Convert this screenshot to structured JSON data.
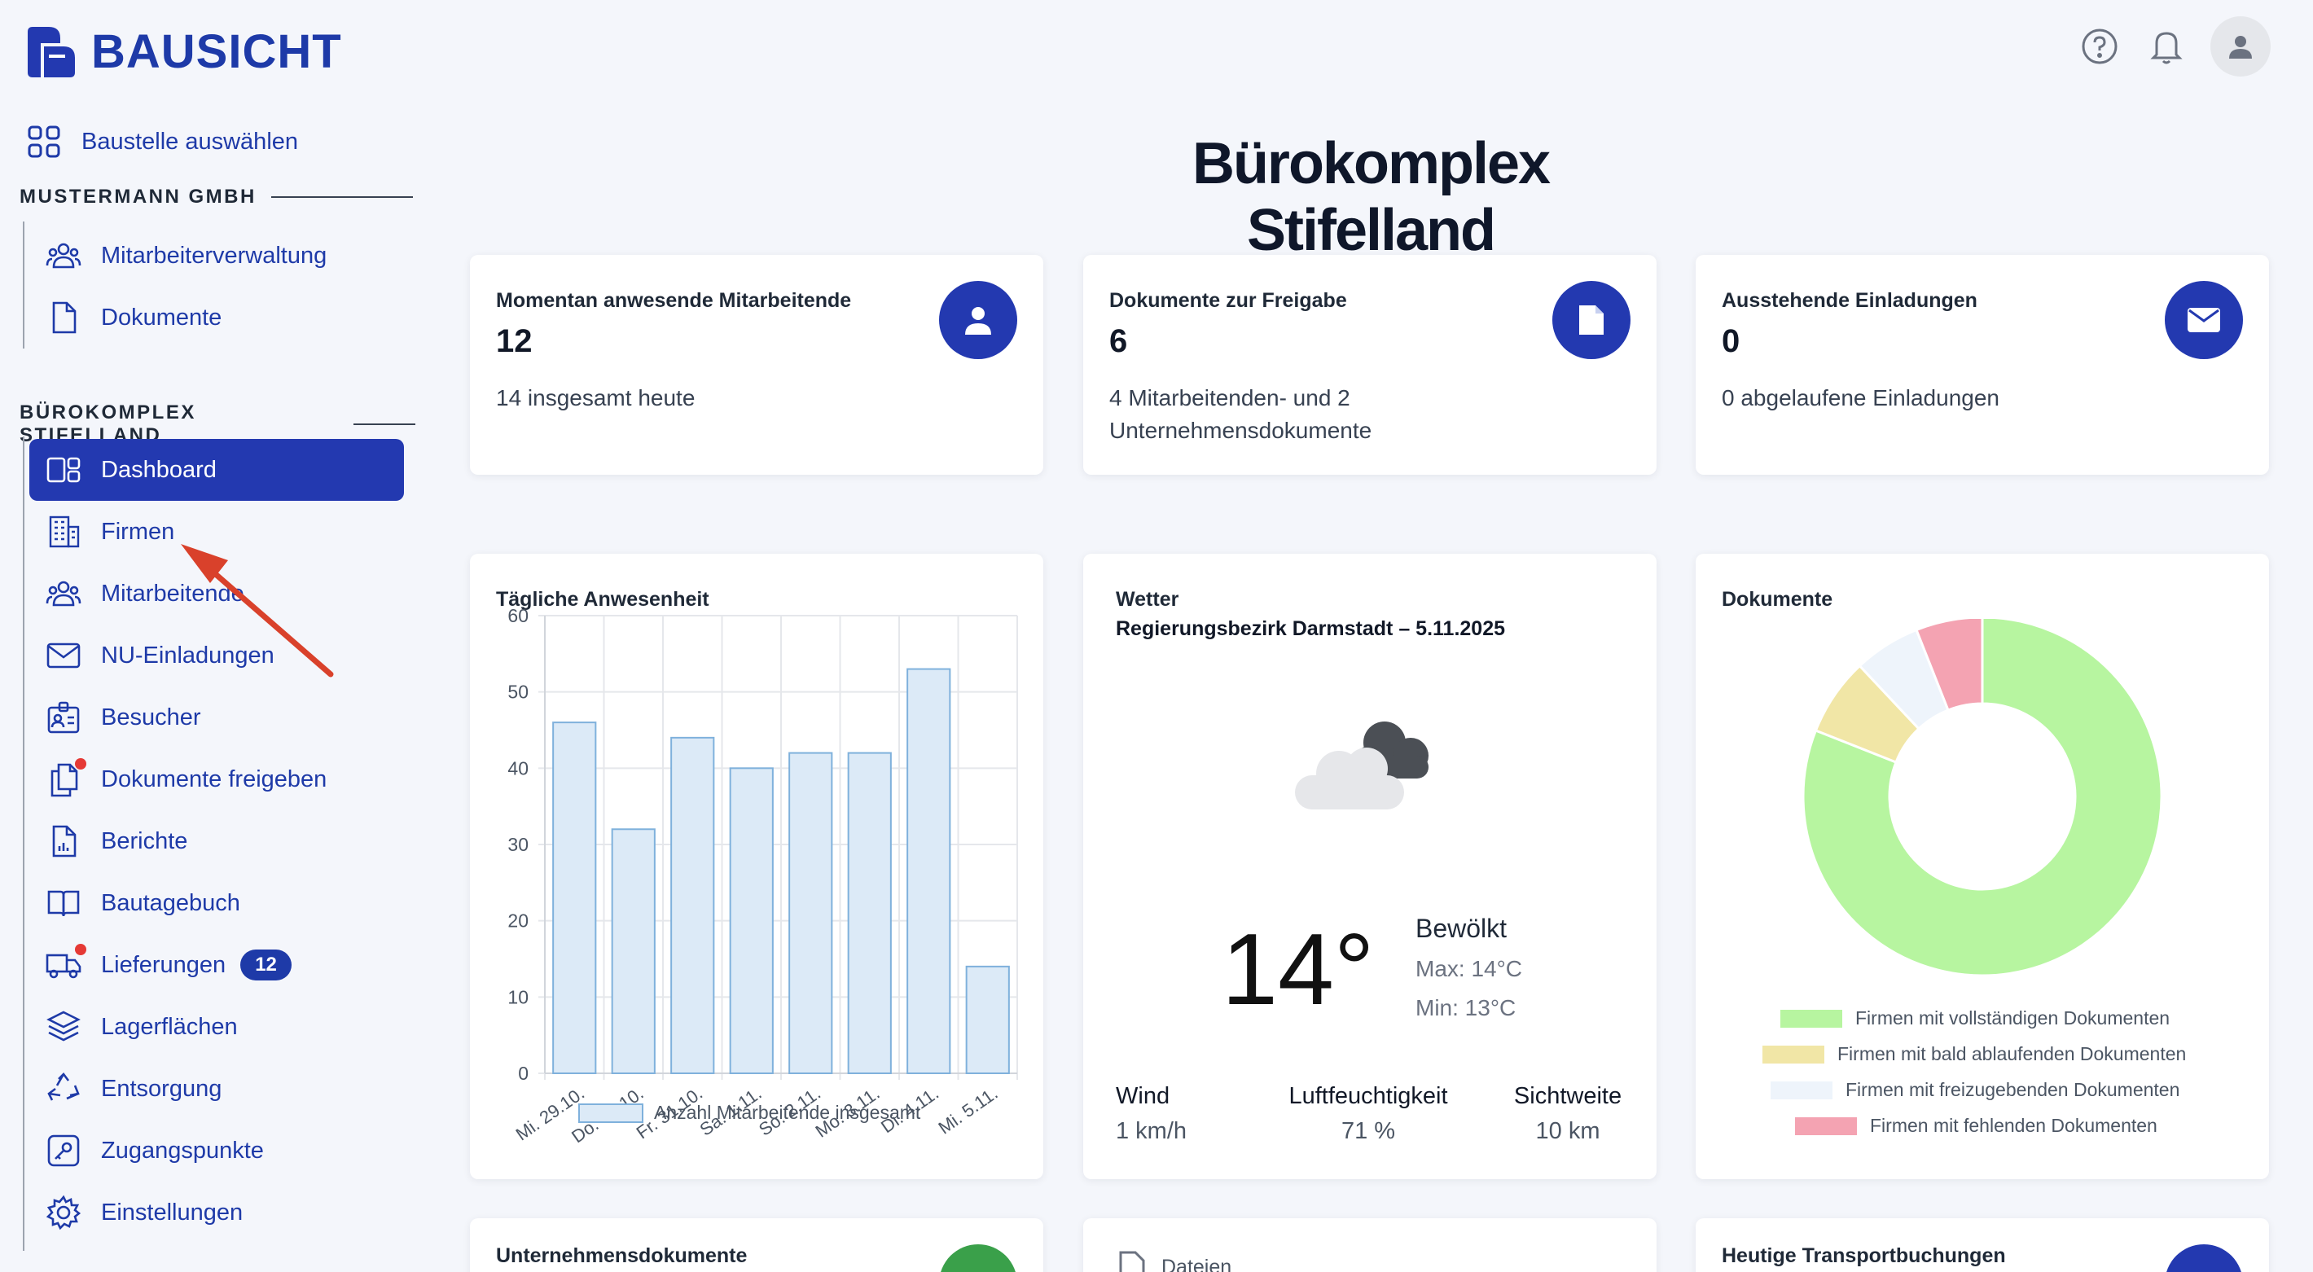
{
  "brand": {
    "name": "BAUSICHT"
  },
  "sidebar": {
    "select_site": "Baustelle auswählen",
    "company_section": "MUSTERMANN GMBH",
    "company_items": [
      {
        "label": "Mitarbeiterverwaltung",
        "icon": "users-icon"
      },
      {
        "label": "Dokumente",
        "icon": "document-icon"
      }
    ],
    "site_section": "BÜROKOMPLEX STIFELLAND",
    "site_items": [
      {
        "label": "Dashboard",
        "icon": "dashboard-icon",
        "active": true
      },
      {
        "label": "Firmen",
        "icon": "building-icon"
      },
      {
        "label": "Mitarbeitende",
        "icon": "users-icon"
      },
      {
        "label": "NU-Einladungen",
        "icon": "envelope-icon"
      },
      {
        "label": "Besucher",
        "icon": "visitor-badge-icon"
      },
      {
        "label": "Dokumente freigeben",
        "icon": "documents-approve-icon",
        "dot": true
      },
      {
        "label": "Berichte",
        "icon": "report-icon"
      },
      {
        "label": "Bautagebuch",
        "icon": "book-icon"
      },
      {
        "label": "Lieferungen",
        "icon": "truck-icon",
        "dot": true,
        "badge": "12"
      },
      {
        "label": "Lagerflächen",
        "icon": "layers-icon"
      },
      {
        "label": "Entsorgung",
        "icon": "recycle-icon"
      },
      {
        "label": "Zugangspunkte",
        "icon": "key-icon"
      },
      {
        "label": "Einstellungen",
        "icon": "gear-icon"
      }
    ]
  },
  "header": {
    "title": "Bürokomplex Stifelland"
  },
  "stats": [
    {
      "title": "Momentan anwesende Mitarbeitende",
      "value": "12",
      "sub": "14 insgesamt heute",
      "icon": "person-icon"
    },
    {
      "title": "Dokumente zur Freigabe",
      "value": "6",
      "sub": "4 Mitarbeitenden- und 2 Unternehmensdokumente",
      "icon": "file-icon"
    },
    {
      "title": "Ausstehende Einladungen",
      "value": "0",
      "sub": "0 abgelaufene Einladungen",
      "icon": "mail-icon"
    }
  ],
  "attendance": {
    "title": "Tägliche Anwesenheit",
    "legend": "Anzahl Mitarbeitende insgesamt"
  },
  "weather": {
    "title": "Wetter",
    "location": "Regierungsbezirk Darmstadt – 5.11.2025",
    "temp": "14°",
    "condition": "Bewölkt",
    "max": "Max: 14°C",
    "min": "Min: 13°C",
    "wind_label": "Wind",
    "wind_value": "1 km/h",
    "humidity_label": "Luftfeuchtigkeit",
    "humidity_value": "71 %",
    "visibility_label": "Sichtweite",
    "visibility_value": "10 km"
  },
  "documents": {
    "title": "Dokumente",
    "legend": [
      {
        "label": "Firmen mit vollständigen Dokumenten",
        "color": "#b7f5a0"
      },
      {
        "label": "Firmen mit bald ablaufenden Dokumenten",
        "color": "#f1e6a6"
      },
      {
        "label": "Firmen mit freizugebenden Dokumenten",
        "color": "#eef4fb"
      },
      {
        "label": "Firmen mit fehlenden Dokumenten",
        "color": "#f4a3b2"
      }
    ]
  },
  "bottom_cards": {
    "company_docs": "Unternehmensdokumente",
    "files": "Dateien",
    "transport": "Heutige Transportbuchungen"
  },
  "chart_data": [
    {
      "type": "bar",
      "title": "Tägliche Anwesenheit",
      "categories": [
        "Mi. 29.10.",
        "Do. 30.10.",
        "Fr. 31.10.",
        "Sa. 1.11.",
        "So. 2.11.",
        "Mo. 3.11.",
        "Di. 4.11.",
        "Mi. 5.11."
      ],
      "series": [
        {
          "name": "Anzahl Mitarbeitende insgesamt",
          "values": [
            46,
            32,
            44,
            40,
            42,
            42,
            53,
            14
          ]
        }
      ],
      "ylim": [
        0,
        60
      ],
      "yticks": [
        0,
        10,
        20,
        30,
        40,
        50,
        60
      ],
      "grid": true,
      "legend_position": "bottom",
      "color": "#dceaf7",
      "border_color": "#7fb1dc"
    },
    {
      "type": "pie",
      "variant": "doughnut",
      "title": "Dokumente",
      "labels": [
        "Firmen mit vollständigen Dokumenten",
        "Firmen mit bald ablaufenden Dokumenten",
        "Firmen mit freizugebenden Dokumenten",
        "Firmen mit fehlenden Dokumenten"
      ],
      "values": [
        81,
        7,
        6,
        6
      ],
      "colors": [
        "#b7f5a0",
        "#f1e6a6",
        "#eef4fb",
        "#f4a3b2"
      ],
      "legend_position": "bottom"
    }
  ]
}
